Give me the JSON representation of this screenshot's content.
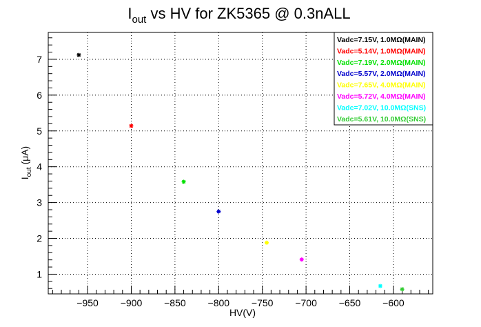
{
  "chart_data": {
    "type": "scatter",
    "title": "I",
    "title_sub": "out",
    "title_rest": " vs HV for ZK5365 @ 0.3nALL",
    "xlabel": "HV(V)",
    "ylabel_main": "I",
    "ylabel_sub": "out",
    "ylabel_rest": " (μA)",
    "xlim": [
      -995,
      -555
    ],
    "ylim": [
      0.45,
      7.75
    ],
    "x_ticks": [
      -950,
      -900,
      -850,
      -800,
      -750,
      -700,
      -650,
      -600
    ],
    "x_tick_labels": [
      "−950",
      "−900",
      "−850",
      "−800",
      "−750",
      "−700",
      "−650",
      "−600"
    ],
    "y_ticks": [
      1,
      2,
      3,
      4,
      5,
      6,
      7
    ],
    "y_tick_labels": [
      "1",
      "2",
      "3",
      "4",
      "5",
      "6",
      "7"
    ],
    "grid": true,
    "legend_position": "top-right",
    "series": [
      {
        "name": "Vadc=7.15V, 1.0MΩ(MAIN)",
        "color": "#000000",
        "x": [
          -960
        ],
        "y": [
          7.12
        ]
      },
      {
        "name": "Vadc=5.14V, 1.0MΩ(MAIN)",
        "color": "#ff0000",
        "x": [
          -900
        ],
        "y": [
          5.14
        ]
      },
      {
        "name": "Vadc=7.19V, 2.0MΩ(MAIN)",
        "color": "#00e000",
        "x": [
          -840
        ],
        "y": [
          3.58
        ]
      },
      {
        "name": "Vadc=5.57V, 2.0MΩ(MAIN)",
        "color": "#0000cc",
        "x": [
          -800
        ],
        "y": [
          2.75
        ]
      },
      {
        "name": "Vadc=7.65V, 4.0MΩ(MAIN)",
        "color": "#ffff00",
        "x": [
          -745
        ],
        "y": [
          1.88
        ]
      },
      {
        "name": "Vadc=5.72V, 4.0MΩ(MAIN)",
        "color": "#ff00ff",
        "x": [
          -705
        ],
        "y": [
          1.41
        ]
      },
      {
        "name": "Vadc=7.02V, 10.0MΩ(SNS)",
        "color": "#00ffff",
        "x": [
          -615
        ],
        "y": [
          0.67
        ]
      },
      {
        "name": "Vadc=5.61V, 10.0MΩ(SNS)",
        "color": "#33cc33",
        "x": [
          -590
        ],
        "y": [
          0.58
        ]
      }
    ]
  }
}
